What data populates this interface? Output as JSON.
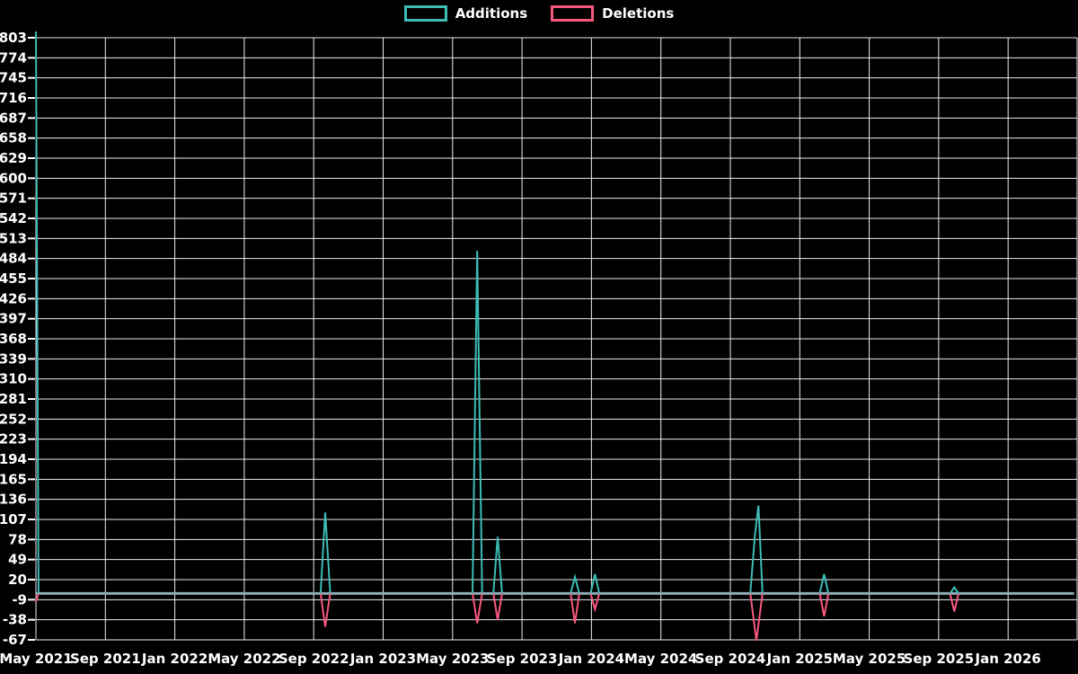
{
  "chart_data": {
    "type": "line",
    "title": "",
    "background_color": "#000000",
    "grid": true,
    "grid_color": "#ededed",
    "text_color": "#ffffff",
    "baseline_color": "#8facb4",
    "legend_position": "top-center",
    "legend": [
      {
        "label": "Additions",
        "color": "#3dbdb5"
      },
      {
        "label": "Deletions",
        "color": "#f9597e"
      }
    ],
    "x_tick_labels": [
      "May 2021",
      "Sep 2021",
      "Jan 2022",
      "May 2022",
      "Sep 2022",
      "Jan 2023",
      "May 2023",
      "Sep 2023",
      "Jan 2024",
      "May 2024",
      "Sep 2024",
      "Jan 2025",
      "May 2025",
      "Sep 2025",
      "Jan 2026"
    ],
    "x_axis": {
      "unit": "months since May 2021",
      "months_per_tick": 4
    },
    "y_tick_labels": [
      803,
      774,
      745,
      716,
      687,
      658,
      629,
      600,
      571,
      542,
      513,
      484,
      455,
      426,
      397,
      368,
      339,
      310,
      281,
      252,
      223,
      194,
      165,
      136,
      107,
      78,
      49,
      20,
      -9,
      -38,
      -67
    ],
    "y_axis": {
      "min": -67,
      "max": 812,
      "tick_step": 29
    },
    "baseline": {
      "value": 0,
      "t_start": 0,
      "t_end": 59.8
    },
    "series": [
      {
        "name": "Additions",
        "color": "#3dbdb5",
        "spikes": [
          [
            [
              0,
              812
            ],
            [
              0.15,
              0
            ]
          ],
          [
            [
              16.4,
              0
            ],
            [
              16.66,
              117
            ],
            [
              16.95,
              0
            ]
          ],
          [
            [
              25.15,
              0
            ],
            [
              25.42,
              495
            ],
            [
              25.7,
              0
            ]
          ],
          [
            [
              26.35,
              0
            ],
            [
              26.6,
              82
            ],
            [
              26.85,
              0
            ]
          ],
          [
            [
              30.8,
              0
            ],
            [
              31.05,
              24
            ],
            [
              31.3,
              0
            ]
          ],
          [
            [
              31.95,
              0
            ],
            [
              32.2,
              28
            ],
            [
              32.45,
              0
            ]
          ],
          [
            [
              41.15,
              0
            ],
            [
              41.42,
              85
            ],
            [
              41.62,
              127
            ],
            [
              41.85,
              0
            ]
          ],
          [
            [
              45.15,
              0
            ],
            [
              45.4,
              28
            ],
            [
              45.65,
              0
            ]
          ],
          [
            [
              52.65,
              0
            ],
            [
              52.9,
              9
            ],
            [
              53.15,
              0
            ]
          ]
        ]
      },
      {
        "name": "Deletions",
        "color": "#f9597e",
        "spikes": [
          [
            [
              0,
              -12
            ],
            [
              0.15,
              0
            ]
          ],
          [
            [
              16.4,
              0
            ],
            [
              16.66,
              -48
            ],
            [
              16.95,
              0
            ]
          ],
          [
            [
              25.15,
              0
            ],
            [
              25.42,
              -43
            ],
            [
              25.7,
              0
            ]
          ],
          [
            [
              26.35,
              0
            ],
            [
              26.6,
              -38
            ],
            [
              26.85,
              0
            ]
          ],
          [
            [
              30.8,
              0
            ],
            [
              31.05,
              -43
            ],
            [
              31.3,
              0
            ]
          ],
          [
            [
              31.95,
              0
            ],
            [
              32.2,
              -23
            ],
            [
              32.45,
              0
            ]
          ],
          [
            [
              41.15,
              0
            ],
            [
              41.5,
              -68
            ],
            [
              41.85,
              0
            ]
          ],
          [
            [
              45.15,
              0
            ],
            [
              45.4,
              -33
            ],
            [
              45.65,
              0
            ]
          ],
          [
            [
              52.65,
              0
            ],
            [
              52.9,
              -26
            ],
            [
              53.15,
              0
            ]
          ]
        ]
      }
    ]
  }
}
